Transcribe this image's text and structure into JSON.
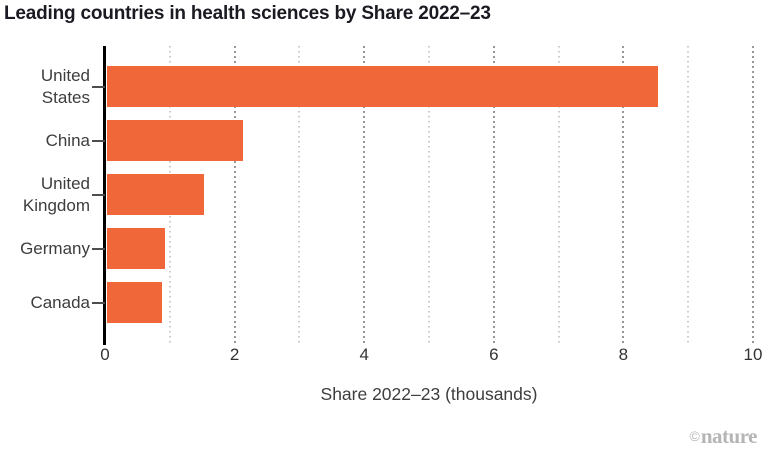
{
  "chart_data": {
    "type": "bar",
    "orientation": "horizontal",
    "title": "Leading countries in health sciences by Share 2022–23",
    "categories": [
      "United States",
      "China",
      "United Kingdom",
      "Germany",
      "Canada"
    ],
    "category_display": [
      "United\nStates",
      "China",
      "United\nKingdom",
      "Germany",
      "Canada"
    ],
    "values": [
      8.5,
      2.1,
      1.5,
      0.9,
      0.85
    ],
    "xlabel": "Share 2022–23 (thousands)",
    "xlim": [
      0,
      10
    ],
    "x_tick_labels": [
      "0",
      "2",
      "4",
      "6",
      "8",
      "10"
    ],
    "x_tick_values": [
      0,
      2,
      4,
      6,
      8,
      10
    ],
    "gridlines_major": [
      2,
      4,
      6,
      8,
      10
    ],
    "gridlines_minor": [
      1,
      3,
      5,
      7,
      9
    ],
    "grid": "vertical-dotted",
    "legend": "none",
    "bar_color": "#f0673a",
    "axis_color": "#000000",
    "title_color": "#1a1a22",
    "label_color": "#3d3d3d"
  },
  "footer": {
    "credit_symbol": "©",
    "credit_name": "nature"
  }
}
